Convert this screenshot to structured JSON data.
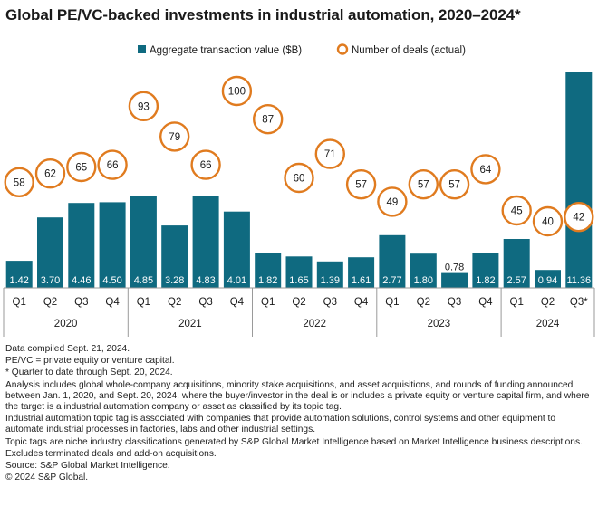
{
  "title": "Global PE/VC-backed investments in industrial automation, 2020–2024*",
  "legend": {
    "bar_label": "Aggregate transaction value ($B)",
    "circle_label": "Number of deals (actual)"
  },
  "colors": {
    "bar": "#0f6a80",
    "circle_stroke": "#e07b1f",
    "text": "#1a1a1a",
    "bar_label": "#ffffff",
    "year_divider": "#9a9a9a"
  },
  "chart_data": {
    "type": "bar",
    "title": "Global PE/VC-backed investments in industrial automation, 2020–2024*",
    "quarters": [
      "Q1",
      "Q2",
      "Q3",
      "Q4",
      "Q1",
      "Q2",
      "Q3",
      "Q4",
      "Q1",
      "Q2",
      "Q3",
      "Q4",
      "Q1",
      "Q2",
      "Q3",
      "Q4",
      "Q1",
      "Q2",
      "Q3*"
    ],
    "years": [
      {
        "label": "2020",
        "count": 4
      },
      {
        "label": "2021",
        "count": 4
      },
      {
        "label": "2022",
        "count": 4
      },
      {
        "label": "2023",
        "count": 4
      },
      {
        "label": "2024",
        "count": 3
      }
    ],
    "series": [
      {
        "name": "Aggregate transaction value ($B)",
        "type": "bar",
        "values": [
          1.42,
          3.7,
          4.46,
          4.5,
          4.85,
          3.28,
          4.83,
          4.01,
          1.82,
          1.65,
          1.39,
          1.61,
          2.77,
          1.8,
          0.78,
          1.82,
          2.57,
          0.94,
          11.36
        ],
        "labels": [
          "1.42",
          "3.70",
          "4.46",
          "4.50",
          "4.85",
          "3.28",
          "4.83",
          "4.01",
          "1.82",
          "1.65",
          "1.39",
          "1.61",
          "2.77",
          "1.80",
          "0.78",
          "1.82",
          "2.57",
          "0.94",
          "11.36"
        ]
      },
      {
        "name": "Number of deals (actual)",
        "type": "scatter",
        "values": [
          58,
          62,
          65,
          66,
          93,
          79,
          66,
          100,
          87,
          60,
          71,
          57,
          49,
          57,
          57,
          64,
          45,
          40,
          42
        ]
      }
    ],
    "bar_ylim": [
      0,
      12
    ],
    "deals_ylim": [
      0,
      120
    ],
    "legend_position": "top-center"
  },
  "notes": [
    "Data compiled Sept. 21, 2024.",
    "PE/VC = private equity or venture capital.",
    "* Quarter to date through Sept. 20, 2024.",
    "Analysis includes global whole-company acquisitions, minority stake acquisitions, and asset acquisitions, and rounds of funding announced between Jan. 1, 2020, and Sept. 20, 2024, where the buyer/investor in the deal is or includes a private equity or venture capital firm, and where the target is a industrial automation company or asset  as classified by its topic tag.",
    "Industrial automation topic tag is associated with companies that provide automation solutions, control systems and other equipment to automate industrial processes in factories, labs and other industrial settings.",
    "Topic tags are niche industry classifications generated by S&P Global Market Intelligence based on Market Intelligence business descriptions.",
    "Excludes terminated deals and add-on acquisitions.",
    "Source: S&P Global Market Intelligence.",
    "© 2024 S&P Global."
  ]
}
